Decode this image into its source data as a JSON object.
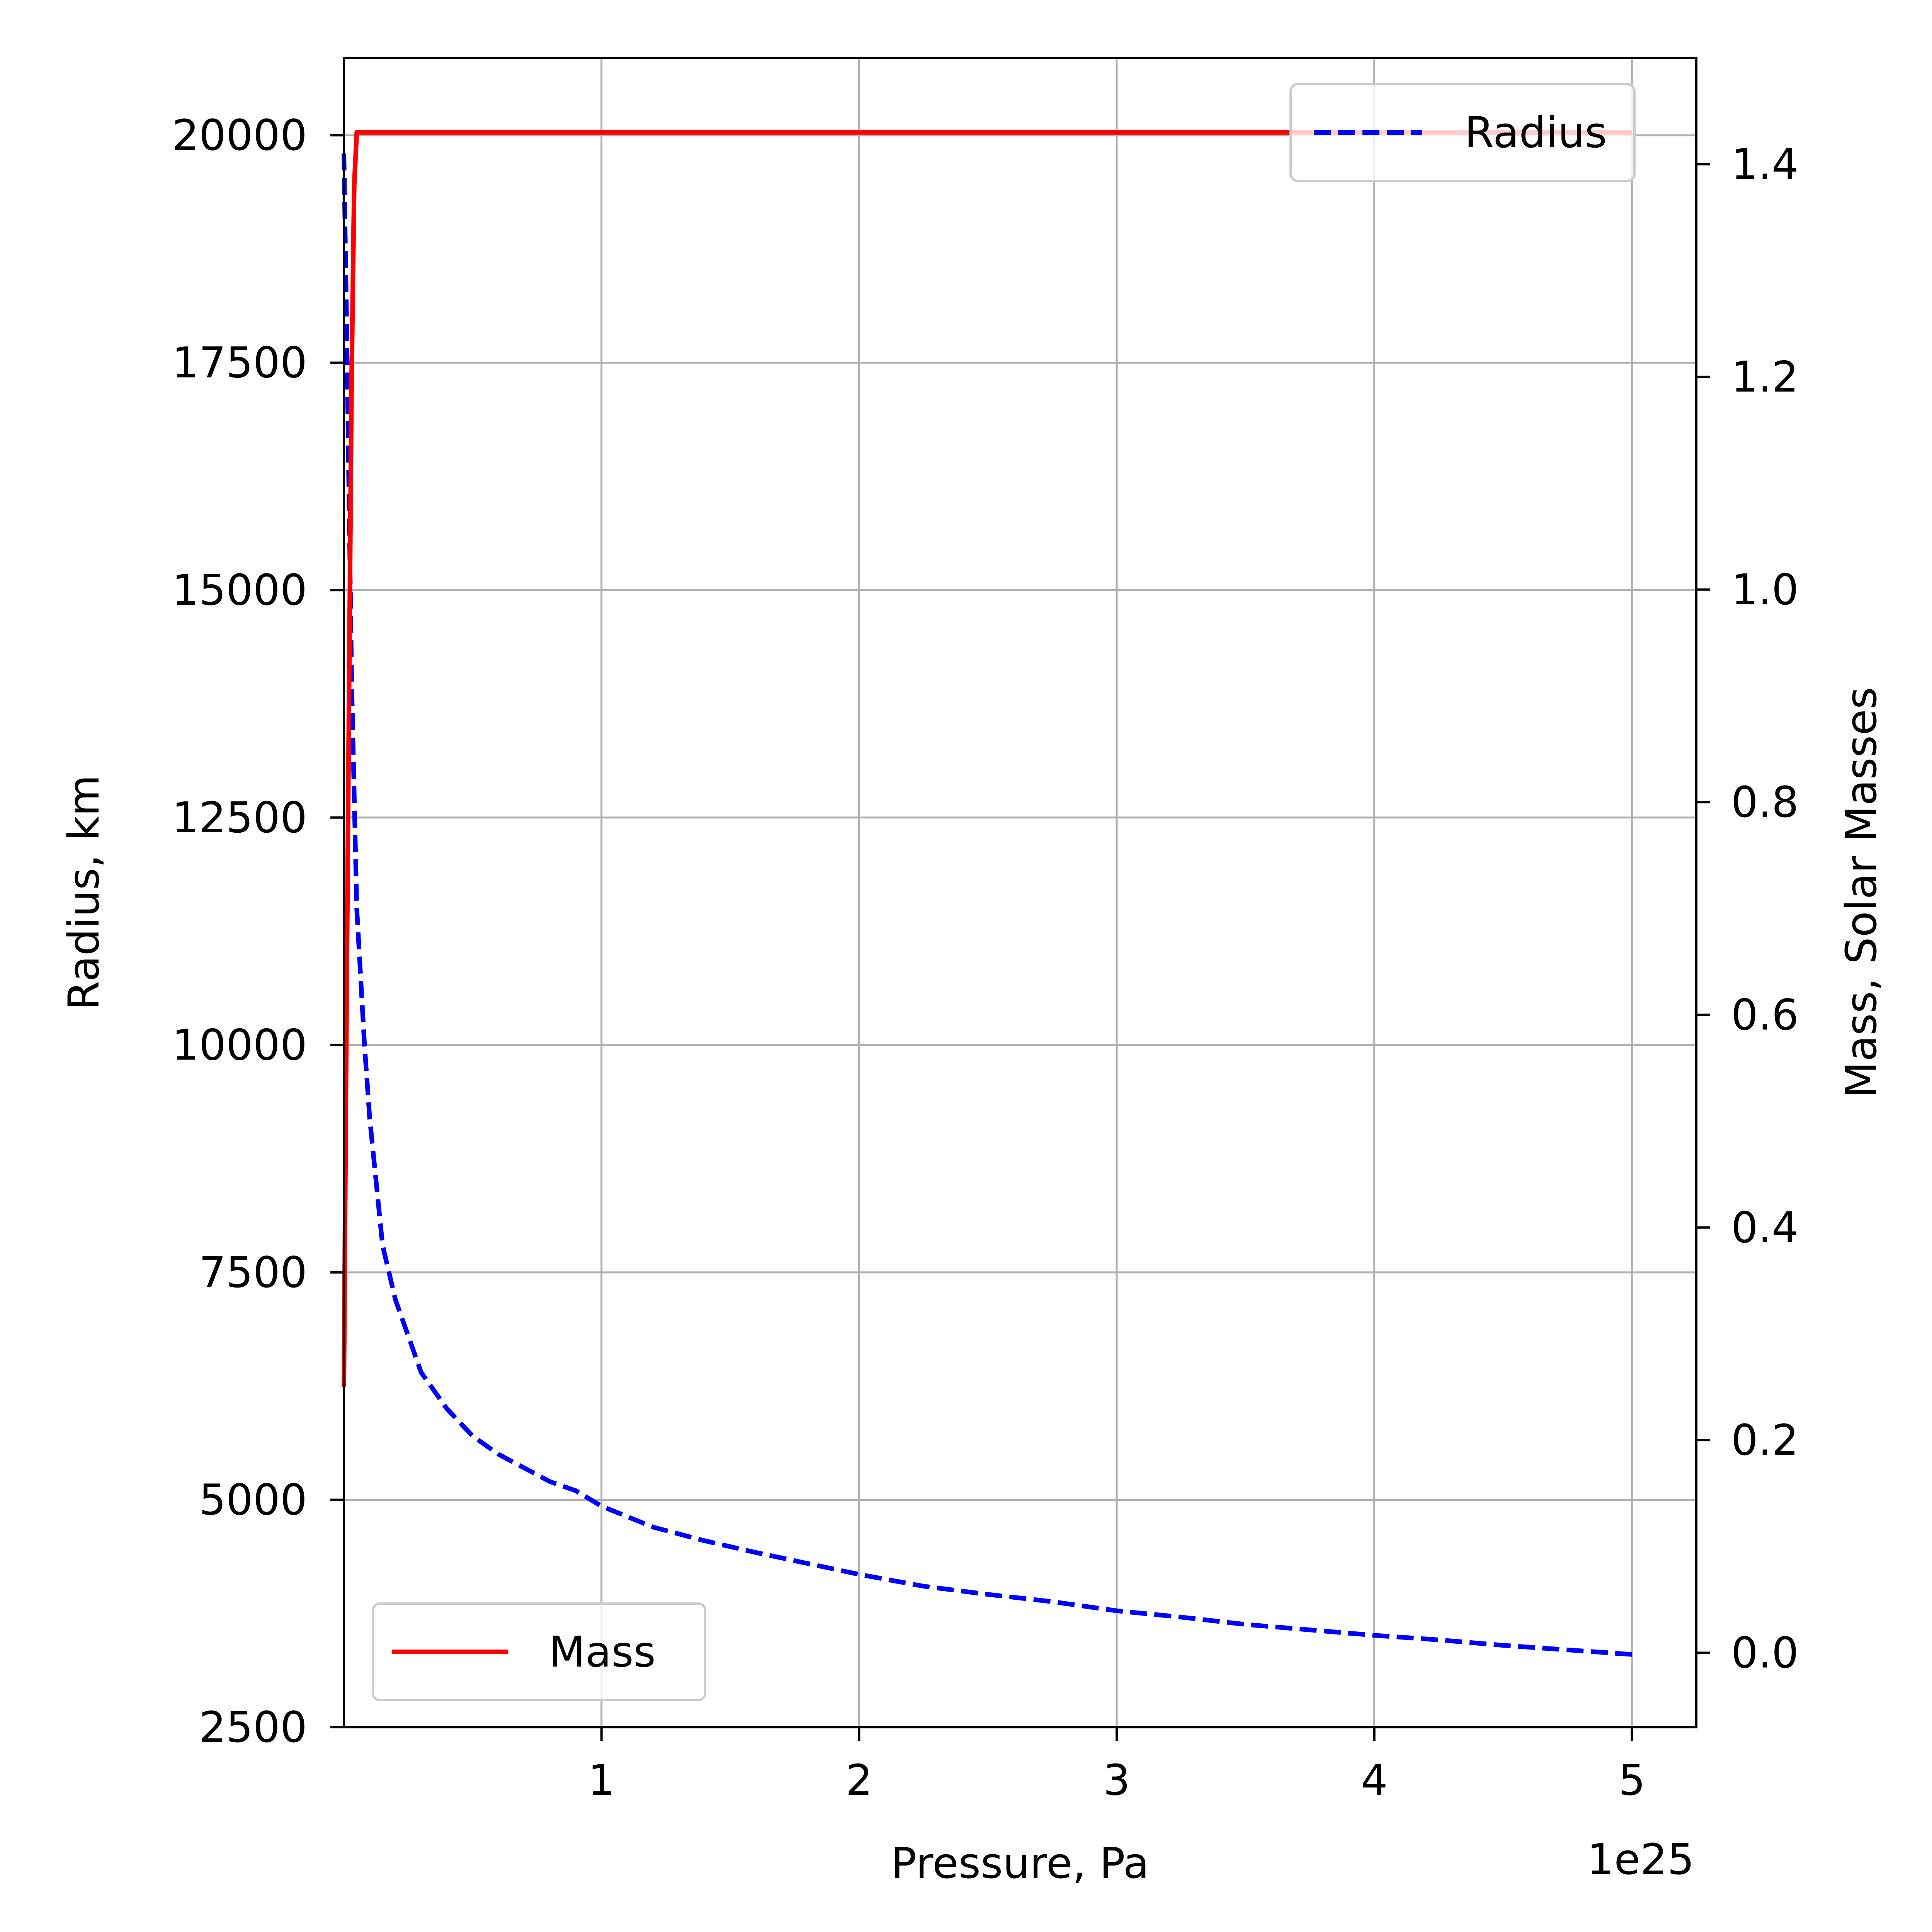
{
  "chart_data": {
    "type": "line",
    "xlabel": "Pressure, Pa",
    "ylabel_left": "Radius, km",
    "ylabel_right": "Mass, Solar Masses",
    "x_offset_text": "1e25",
    "x_scale": 1e+25,
    "xlim": [
      0,
      5.25e+25
    ],
    "ylim_left": [
      2500,
      20850
    ],
    "ylim_right": [
      -0.07,
      1.5
    ],
    "x_ticks": [
      1,
      2,
      3,
      4,
      5
    ],
    "x_tick_labels": [
      "1",
      "2",
      "3",
      "4",
      "5"
    ],
    "y_left_ticks": [
      2500,
      5000,
      7500,
      10000,
      12500,
      15000,
      17500,
      20000
    ],
    "y_left_tick_labels": [
      "2500",
      "5000",
      "7500",
      "10000",
      "12500",
      "15000",
      "17500",
      "20000"
    ],
    "y_right_ticks": [
      0.0,
      0.2,
      0.4,
      0.6,
      0.8,
      1.0,
      1.2,
      1.4
    ],
    "y_right_tick_labels": [
      "0.0",
      "0.2",
      "0.4",
      "0.6",
      "0.8",
      "1.0",
      "1.2",
      "1.4"
    ],
    "grid": true,
    "series": [
      {
        "name": "Radius",
        "axis": "left",
        "color": "#0000ff",
        "style": "dashed",
        "legend_position": "upper right",
        "points": [
          [
            0.0,
            19800
          ],
          [
            0.01,
            18000
          ],
          [
            0.03,
            14000
          ],
          [
            0.05,
            11500
          ],
          [
            0.08,
            10000
          ],
          [
            0.1,
            9200
          ],
          [
            0.15,
            7800
          ],
          [
            0.2,
            7200
          ],
          [
            0.3,
            6400
          ],
          [
            0.4,
            6000
          ],
          [
            0.5,
            5700
          ],
          [
            0.6,
            5500
          ],
          [
            0.7,
            5350
          ],
          [
            0.8,
            5200
          ],
          [
            0.9,
            5100
          ],
          [
            1.0,
            4930
          ],
          [
            1.2,
            4700
          ],
          [
            1.4,
            4550
          ],
          [
            1.6,
            4420
          ],
          [
            1.8,
            4300
          ],
          [
            2.0,
            4180
          ],
          [
            2.25,
            4050
          ],
          [
            2.5,
            3960
          ],
          [
            2.75,
            3880
          ],
          [
            3.0,
            3780
          ],
          [
            3.25,
            3710
          ],
          [
            3.5,
            3630
          ],
          [
            3.75,
            3570
          ],
          [
            4.0,
            3510
          ],
          [
            4.25,
            3460
          ],
          [
            4.5,
            3400
          ],
          [
            4.75,
            3350
          ],
          [
            5.0,
            3300
          ]
        ]
      },
      {
        "name": "Mass",
        "axis": "right",
        "color": "#ff0000",
        "style": "solid",
        "legend_position": "lower left",
        "points": [
          [
            0.0,
            0.25
          ],
          [
            0.01,
            0.6
          ],
          [
            0.02,
            0.9
          ],
          [
            0.03,
            1.2
          ],
          [
            0.04,
            1.38
          ],
          [
            0.05,
            1.43
          ],
          [
            1.0,
            1.43
          ],
          [
            2.0,
            1.43
          ],
          [
            3.0,
            1.43
          ],
          [
            4.0,
            1.43
          ],
          [
            5.0,
            1.43
          ]
        ]
      }
    ]
  }
}
